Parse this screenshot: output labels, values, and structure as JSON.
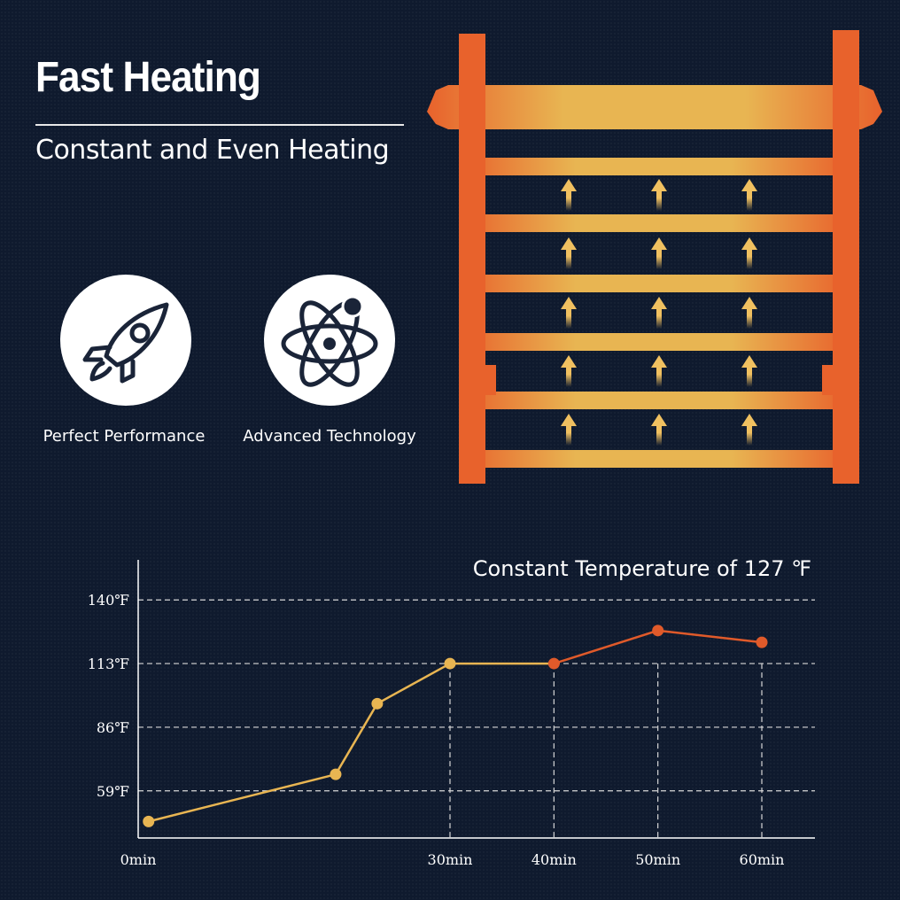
{
  "header": {
    "title": "Fast Heating",
    "subtitle": "Constant and Even Heating"
  },
  "features": [
    {
      "label": "Perfect Performance",
      "icon": "rocket-icon"
    },
    {
      "label": "Advanced Technology",
      "icon": "atom-icon"
    }
  ],
  "colors": {
    "background": "#0f1a2e",
    "heat_orange": "#e8622c",
    "heat_yellow": "#e8b552",
    "arrow_yellow": "#f0c060",
    "line_early": "#e8b552",
    "line_late": "#e05a2a"
  },
  "chart_data": {
    "type": "line",
    "title": "Constant Temperature of 127 ℉",
    "xlabel": "",
    "ylabel": "",
    "x_ticks": [
      {
        "value": 0,
        "label": "0min"
      },
      {
        "value": 30,
        "label": "30min"
      },
      {
        "value": 40,
        "label": "40min"
      },
      {
        "value": 50,
        "label": "50min"
      },
      {
        "value": 60,
        "label": "60min"
      }
    ],
    "y_ticks": [
      {
        "value": 59,
        "label": "59℉"
      },
      {
        "value": 86,
        "label": "86℉"
      },
      {
        "value": 113,
        "label": "113℉"
      },
      {
        "value": 140,
        "label": "140℉"
      }
    ],
    "xlim": [
      0,
      61
    ],
    "ylim": [
      39,
      157
    ],
    "grid": "dashed",
    "series": [
      {
        "color": "#e8b552",
        "points": [
          [
            1,
            46
          ],
          [
            19,
            66
          ],
          [
            23,
            96
          ],
          [
            30,
            113
          ],
          [
            40,
            113
          ]
        ]
      },
      {
        "color": "#e05a2a",
        "points": [
          [
            40,
            113
          ],
          [
            50,
            127
          ],
          [
            60,
            122
          ]
        ]
      }
    ]
  }
}
